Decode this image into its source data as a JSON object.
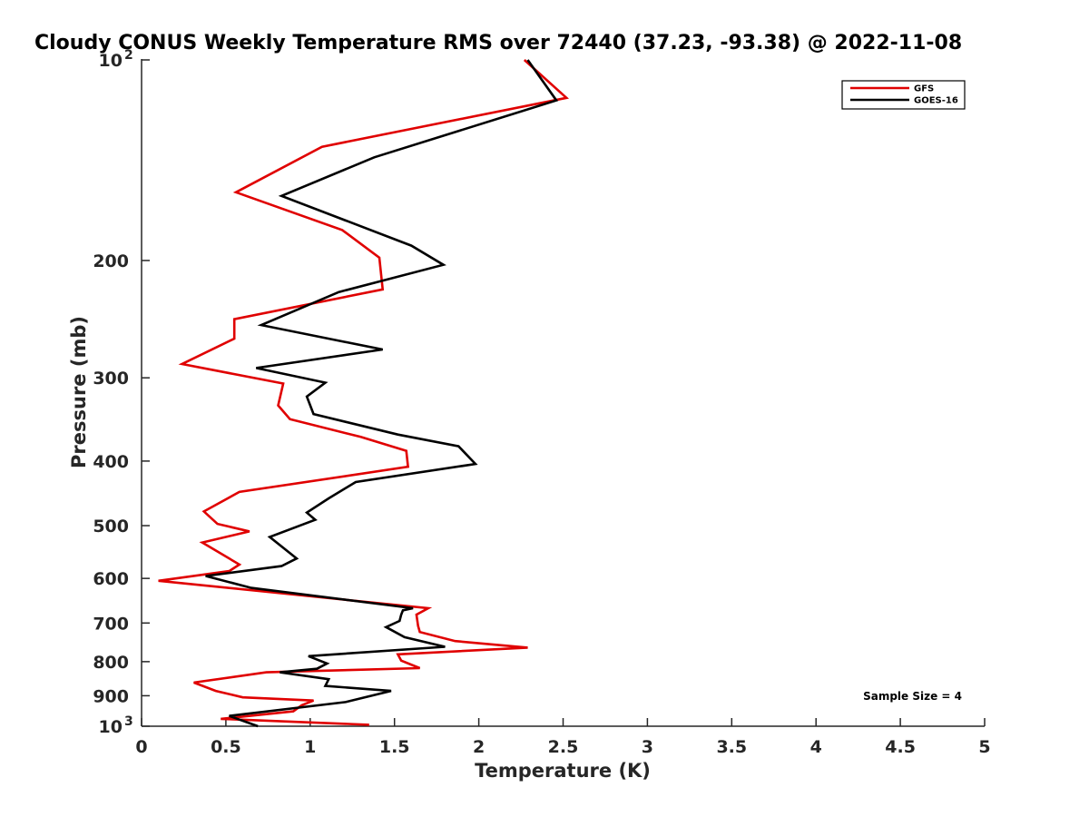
{
  "chart_data": {
    "type": "line",
    "title": "Cloudy CONUS Weekly Temperature RMS over 72440 (37.23, -93.38) @ 2022-11-08",
    "xlabel": "Temperature (K)",
    "ylabel": "Pressure (mb)",
    "xlim": [
      0,
      5
    ],
    "ylim": [
      100,
      1000
    ],
    "y_scale": "log",
    "y_reversed": true,
    "grid": false,
    "legend_position": "top-right",
    "x_ticks": [
      {
        "value": 0,
        "label": "0"
      },
      {
        "value": 0.5,
        "label": "0.5"
      },
      {
        "value": 1,
        "label": "1"
      },
      {
        "value": 1.5,
        "label": "1.5"
      },
      {
        "value": 2,
        "label": "2"
      },
      {
        "value": 2.5,
        "label": "2.5"
      },
      {
        "value": 3,
        "label": "3"
      },
      {
        "value": 3.5,
        "label": "3.5"
      },
      {
        "value": 4,
        "label": "4"
      },
      {
        "value": 4.5,
        "label": "4.5"
      },
      {
        "value": 5,
        "label": "5"
      }
    ],
    "y_ticks": [
      {
        "value": 100,
        "label": "10",
        "sup": "2"
      },
      {
        "value": 200,
        "label": "200",
        "sup": ""
      },
      {
        "value": 300,
        "label": "300",
        "sup": ""
      },
      {
        "value": 400,
        "label": "400",
        "sup": ""
      },
      {
        "value": 500,
        "label": "500",
        "sup": ""
      },
      {
        "value": 600,
        "label": "600",
        "sup": ""
      },
      {
        "value": 700,
        "label": "700",
        "sup": ""
      },
      {
        "value": 800,
        "label": "800",
        "sup": ""
      },
      {
        "value": 900,
        "label": "900",
        "sup": ""
      },
      {
        "value": 1000,
        "label": "10",
        "sup": "3"
      }
    ],
    "annotation": "Sample Size = 4",
    "series": [
      {
        "name": "GFS",
        "color": "#e00000",
        "points": [
          [
            2.27,
            100
          ],
          [
            2.52,
            114
          ],
          [
            1.07,
            135
          ],
          [
            0.56,
            158
          ],
          [
            1.19,
            180
          ],
          [
            1.41,
            198
          ],
          [
            1.43,
            221
          ],
          [
            0.55,
            245
          ],
          [
            0.55,
            262
          ],
          [
            0.24,
            286
          ],
          [
            0.84,
            306
          ],
          [
            0.81,
            330
          ],
          [
            0.88,
            346
          ],
          [
            1.3,
            368
          ],
          [
            1.57,
            386
          ],
          [
            1.58,
            408
          ],
          [
            0.58,
            445
          ],
          [
            0.37,
            476
          ],
          [
            0.45,
            497
          ],
          [
            0.64,
            510
          ],
          [
            0.36,
            530
          ],
          [
            0.58,
            572
          ],
          [
            0.52,
            585
          ],
          [
            0.1,
            605
          ],
          [
            1.7,
            665
          ],
          [
            1.63,
            680
          ],
          [
            1.64,
            707
          ],
          [
            1.65,
            722
          ],
          [
            1.86,
            745
          ],
          [
            2.29,
            762
          ],
          [
            1.52,
            780
          ],
          [
            1.54,
            797
          ],
          [
            1.65,
            818
          ],
          [
            0.74,
            830
          ],
          [
            0.31,
            860
          ],
          [
            0.44,
            885
          ],
          [
            0.6,
            905
          ],
          [
            1.02,
            915
          ],
          [
            0.95,
            930
          ],
          [
            0.9,
            950
          ],
          [
            0.47,
            975
          ],
          [
            1.35,
            995
          ]
        ]
      },
      {
        "name": "GOES-16",
        "color": "#000000",
        "points": [
          [
            2.29,
            100
          ],
          [
            2.46,
            115
          ],
          [
            1.38,
            140
          ],
          [
            0.83,
            160
          ],
          [
            1.6,
            190
          ],
          [
            1.79,
            203
          ],
          [
            1.17,
            223
          ],
          [
            0.71,
            250
          ],
          [
            1.43,
            272
          ],
          [
            0.68,
            290
          ],
          [
            1.09,
            305
          ],
          [
            0.98,
            320
          ],
          [
            1.02,
            340
          ],
          [
            1.52,
            365
          ],
          [
            1.88,
            380
          ],
          [
            1.98,
            404
          ],
          [
            1.27,
            430
          ],
          [
            1.11,
            455
          ],
          [
            0.98,
            478
          ],
          [
            1.03,
            490
          ],
          [
            0.76,
            520
          ],
          [
            0.92,
            560
          ],
          [
            0.83,
            575
          ],
          [
            0.38,
            595
          ],
          [
            0.65,
            620
          ],
          [
            1.61,
            665
          ],
          [
            1.55,
            670
          ],
          [
            1.54,
            680
          ],
          [
            1.53,
            695
          ],
          [
            1.45,
            710
          ],
          [
            1.56,
            735
          ],
          [
            1.8,
            760
          ],
          [
            0.99,
            785
          ],
          [
            1.1,
            805
          ],
          [
            1.04,
            820
          ],
          [
            0.82,
            830
          ],
          [
            1.11,
            850
          ],
          [
            1.09,
            870
          ],
          [
            1.48,
            885
          ],
          [
            1.21,
            920
          ],
          [
            0.52,
            965
          ],
          [
            0.69,
            1000
          ]
        ]
      }
    ]
  }
}
